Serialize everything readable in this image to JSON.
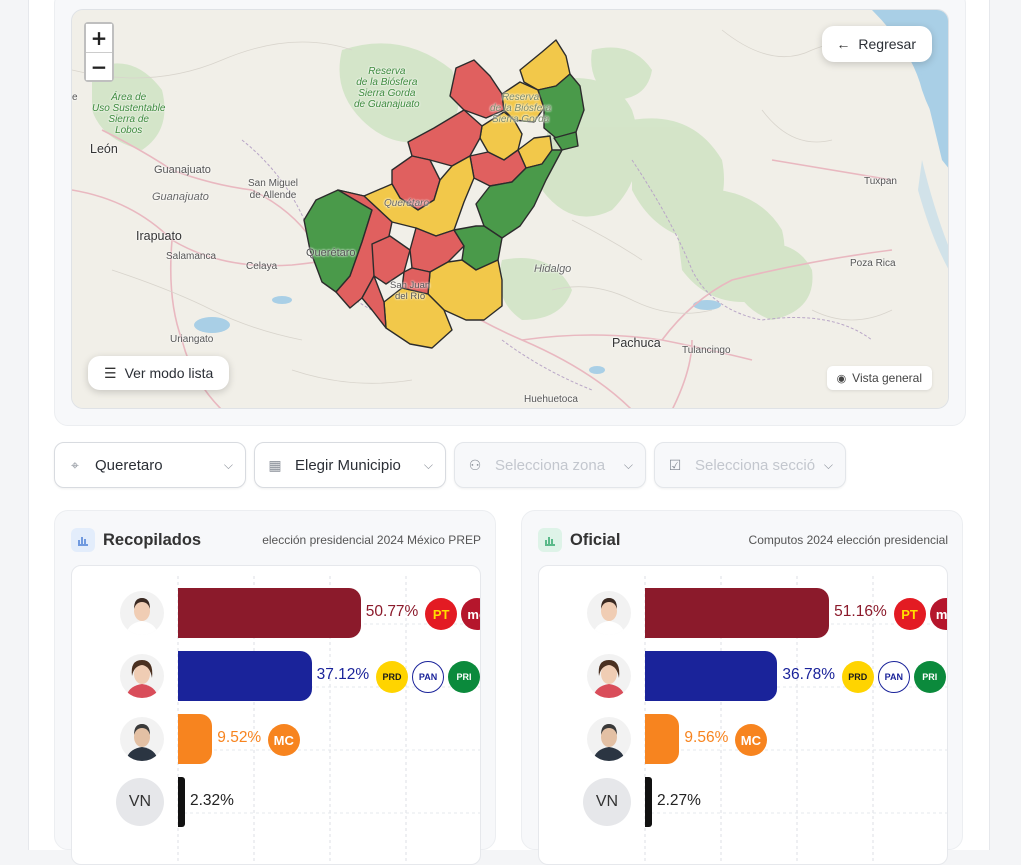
{
  "map": {
    "zoom_in": "+",
    "zoom_out": "−",
    "back_label": "Regresar",
    "list_label": "Ver modo lista",
    "overview_label": "Vista general",
    "labels": {
      "leon": "León",
      "guanajuato": "Guanajuato",
      "guanajuato_state": "Guanajuato",
      "irapuato": "Irapuato",
      "salamanca": "Salamanca",
      "celaya": "Celaya",
      "san_miguel": "San Miguel\nde Allende",
      "queretaro_city": "Querétaro",
      "queretaro_state": "Querétaro",
      "san_juan": "San Juan\ndel Río",
      "hidalgo": "Hidalgo",
      "pachuca": "Pachuca",
      "tulancingo": "Tulancingo",
      "tuxpan": "Tuxpan",
      "poza_rica": "Poza Rica",
      "uriangato": "Uriangato",
      "huehuetoca": "Huehuetoca",
      "reserva_gto": "Reserva\nde la Biósfera\nSierra Gorda\nde Guanajuato",
      "reserva_qro": "Reserva\nde la Biósfera\nSierra Gorda",
      "area_lobos": "Área de\nUso Sustentable\nSierra de\nLobos",
      "edge_e": "e"
    }
  },
  "filters": {
    "estado": {
      "value": "Queretaro",
      "icon": "map-pin-icon"
    },
    "municipio": {
      "value": "Elegir Municipio",
      "icon": "building-icon"
    },
    "zona": {
      "placeholder": "Selecciona zona",
      "icon": "users-icon"
    },
    "seccion": {
      "placeholder": "Selecciona sección",
      "icon": "ballot-icon"
    }
  },
  "panels": {
    "recopilados": {
      "title": "Recopilados",
      "subtitle": "elección presidencial 2024 México PREP",
      "icon_color": "#4a7fd6"
    },
    "oficial": {
      "title": "Oficial",
      "subtitle": "Computos 2024 elección presidencial",
      "icon_color": "#2ea86a"
    }
  },
  "colors": {
    "morena": "#8b1a2b",
    "pan_coalition": "#1a239a",
    "mc": "#f7841f",
    "vn": "#111111",
    "map_red": "#e0605f",
    "map_yellow": "#f2c84a",
    "map_green": "#4a9a4a"
  },
  "chart_data": [
    {
      "type": "bar",
      "categories": [
        "Morena-PT-PVEM",
        "PAN-PRI-PRD",
        "MC",
        "VN"
      ],
      "values": [
        50.77,
        37.12,
        9.52,
        2.32
      ],
      "labels": [
        "50.77%",
        "37.12%",
        "9.52%",
        "2.32%"
      ]
    },
    {
      "type": "bar",
      "categories": [
        "Morena-PT-PVEM",
        "PAN-PRI-PRD",
        "MC",
        "VN"
      ],
      "values": [
        51.16,
        36.78,
        9.56,
        2.27
      ],
      "labels": [
        "51.16%",
        "36.78%",
        "9.56%",
        "2.27%"
      ]
    }
  ],
  "party_logos": {
    "pt": "PT",
    "morena": "mo",
    "prd": "PRD",
    "pan": "PAN",
    "pri": "PRI",
    "mc": "MC"
  },
  "vn_label": "VN"
}
